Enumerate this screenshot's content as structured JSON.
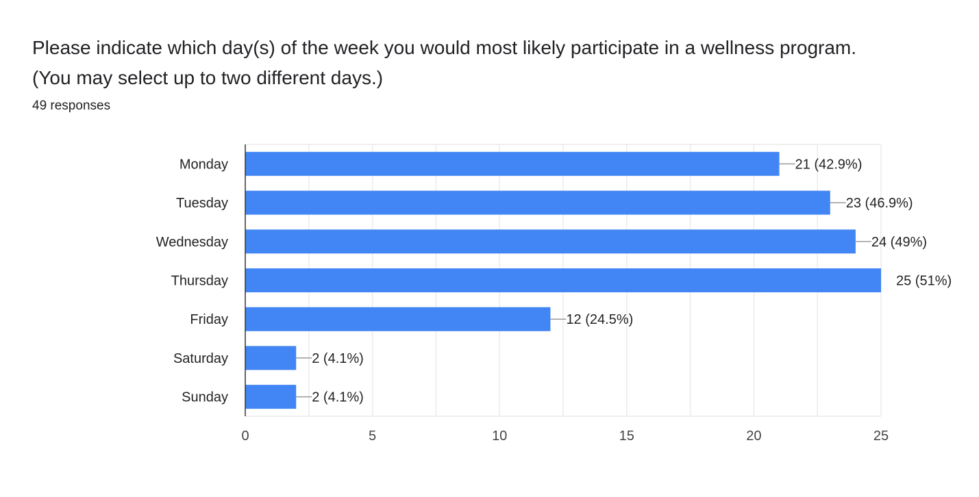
{
  "question": {
    "title_line1": "Please indicate which day(s) of the week you would most likely participate in a wellness program.",
    "title_line2": "(You may select up to two different days.)",
    "responses": "49 responses"
  },
  "colors": {
    "bar": "#4285f4",
    "grid": "#ebebeb",
    "axis": "#333333",
    "leader": "#999999"
  },
  "chart_data": {
    "type": "bar",
    "orientation": "horizontal",
    "title": "Please indicate which day(s) of the week you would most likely participate in a wellness program. (You may select up to two different days.)",
    "xlabel": "",
    "ylabel": "",
    "categories": [
      "Monday",
      "Tuesday",
      "Wednesday",
      "Thursday",
      "Friday",
      "Saturday",
      "Sunday"
    ],
    "values": [
      21,
      23,
      24,
      25,
      12,
      2,
      2
    ],
    "data_labels": [
      "21 (42.9%)",
      "23 (46.9%)",
      "24 (49%)",
      "25 (51%)",
      "12 (24.5%)",
      "2 (4.1%)",
      "2 (4.1%)"
    ],
    "xlim": [
      0,
      25
    ],
    "ticks": [
      0,
      5,
      10,
      15,
      20,
      25
    ],
    "grid": true
  }
}
